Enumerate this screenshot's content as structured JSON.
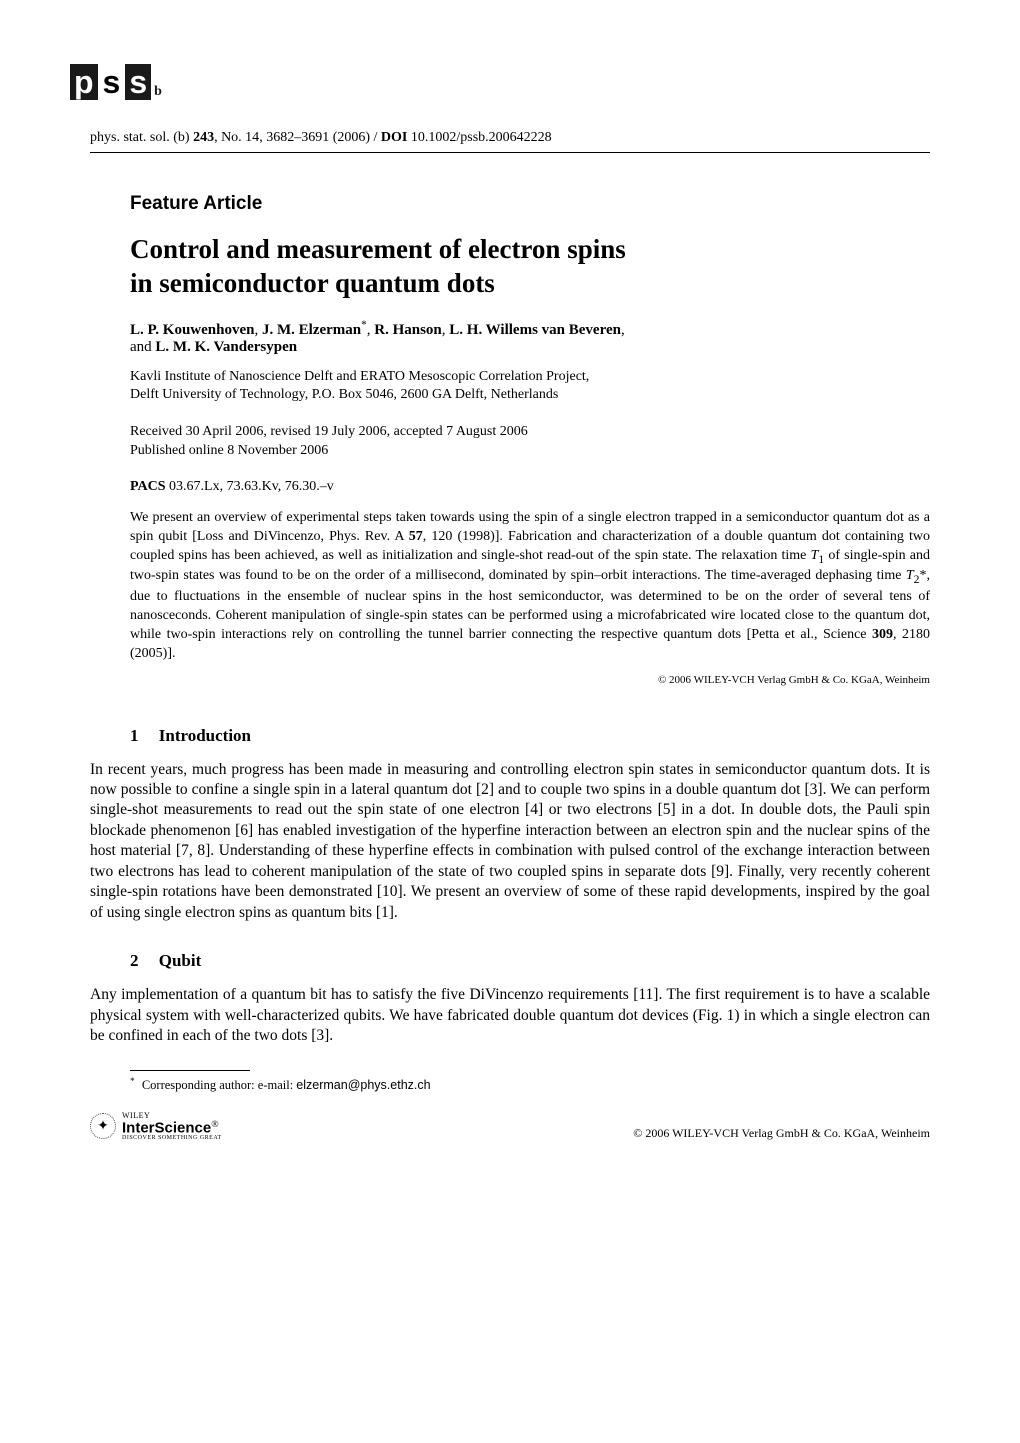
{
  "logo": {
    "boxes": [
      {
        "label": "physica",
        "letter": "p",
        "dark": true
      },
      {
        "label": "status",
        "letter": "s",
        "dark": false
      },
      {
        "label": "solidi",
        "letter": "s",
        "dark": true
      }
    ],
    "suffix": "b"
  },
  "citation": {
    "journal": "phys. stat. sol. (b)",
    "volume": "243",
    "issue": "No. 14",
    "pages": "3682–3691",
    "year": "2006",
    "doi_label": "DOI",
    "doi": "10.1002/pssb.200642228"
  },
  "feature_label": "Feature Article",
  "title_line1": "Control and measurement of electron spins",
  "title_line2": "in semiconductor quantum dots",
  "authors": {
    "list1_prefix": "",
    "a1": "L. P. Kouwenhoven",
    "a2": "J. M. Elzerman",
    "a2_sup": "*",
    "a3": "R. Hanson",
    "a4": "L. H. Willems van Beveren",
    "and": "and",
    "a5": "L. M. K. Vandersypen"
  },
  "affiliation_line1": "Kavli Institute of Nanoscience Delft and ERATO Mesoscopic Correlation Project,",
  "affiliation_line2": "Delft University of Technology, P.O. Box 5046, 2600 GA Delft, Netherlands",
  "dates_line1": "Received 30 April 2006, revised 19 July 2006, accepted 7 August 2006",
  "dates_line2": "Published online 8 November 2006",
  "pacs_label": "PACS",
  "pacs_codes": "03.67.Lx, 73.63.Kv, 76.30.–v",
  "abstract": "We present an overview of experimental steps taken towards using the spin of a single electron trapped in a semiconductor quantum dot as a spin qubit [Loss and DiVincenzo, Phys. Rev. A 57, 120 (1998)]. Fabrication and characterization of a double quantum dot containing two coupled spins has been achieved, as well as initialization and single-shot read-out of the spin state. The relaxation time T₁ of single-spin and two-spin states was found to be on the order of a millisecond, dominated by spin–orbit interactions. The time-averaged dephasing time T₂*, due to fluctuations in the ensemble of nuclear spins in the host semiconductor, was determined to be on the order of several tens of nanosceconds. Coherent manipulation of single-spin states can be performed using a microfabricated wire located close to the quantum dot, while two-spin interactions rely on controlling the tunnel barrier connecting the respective quantum dots [Petta et al., Science 309, 2180 (2005)].",
  "copyright_abstract": "© 2006 WILEY-VCH Verlag GmbH & Co. KGaA, Weinheim",
  "sections": {
    "s1": {
      "num": "1",
      "title": "Introduction"
    },
    "s2": {
      "num": "2",
      "title": "Qubit"
    }
  },
  "body": {
    "intro": "In recent years, much progress has been made in measuring and controlling electron spin states in semiconductor quantum dots. It is now possible to confine a single spin in a lateral quantum dot [2] and to couple two spins in a double quantum dot [3]. We can perform single-shot measurements to read out the spin state of one electron [4] or two electrons [5] in a dot. In double dots, the Pauli spin blockade phenomenon [6] has enabled investigation of the hyperfine interaction between an electron spin and the nuclear spins of the host material [7, 8]. Understanding of these hyperfine effects in combination with pulsed control of the exchange interaction between two electrons has lead to coherent manipulation of the state of two coupled spins in separate dots [9]. Finally, very recently coherent single-spin rotations have been demonstrated [10]. We present an overview of some of these rapid developments, inspired by the goal of using single electron spins as quantum bits [1].",
    "qubit": "Any implementation of a quantum bit has to satisfy the five DiVincenzo requirements [11]. The first requirement is to have a scalable physical system with well-characterized qubits. We have fabricated double quantum dot devices (Fig. 1) in which a single electron can be confined in each of the two dots [3]."
  },
  "footnote": {
    "marker": "*",
    "text": "Corresponding author: e-mail: ",
    "email": "elzerman@phys.ethz.ch"
  },
  "footer": {
    "interscience_wiley": "WILEY",
    "interscience_main": "InterScience",
    "interscience_reg": "®",
    "interscience_tag": "DISCOVER SOMETHING GREAT",
    "copyright": "© 2006 WILEY-VCH Verlag GmbH & Co. KGaA, Weinheim"
  },
  "colors": {
    "text": "#000000",
    "background": "#ffffff",
    "logo_dark": "#1a1a1a"
  },
  "typography": {
    "body_font": "Times New Roman",
    "heading_font": "Arial",
    "title_size_pt": 20,
    "body_size_pt": 11.5,
    "abstract_size_pt": 10.5
  }
}
